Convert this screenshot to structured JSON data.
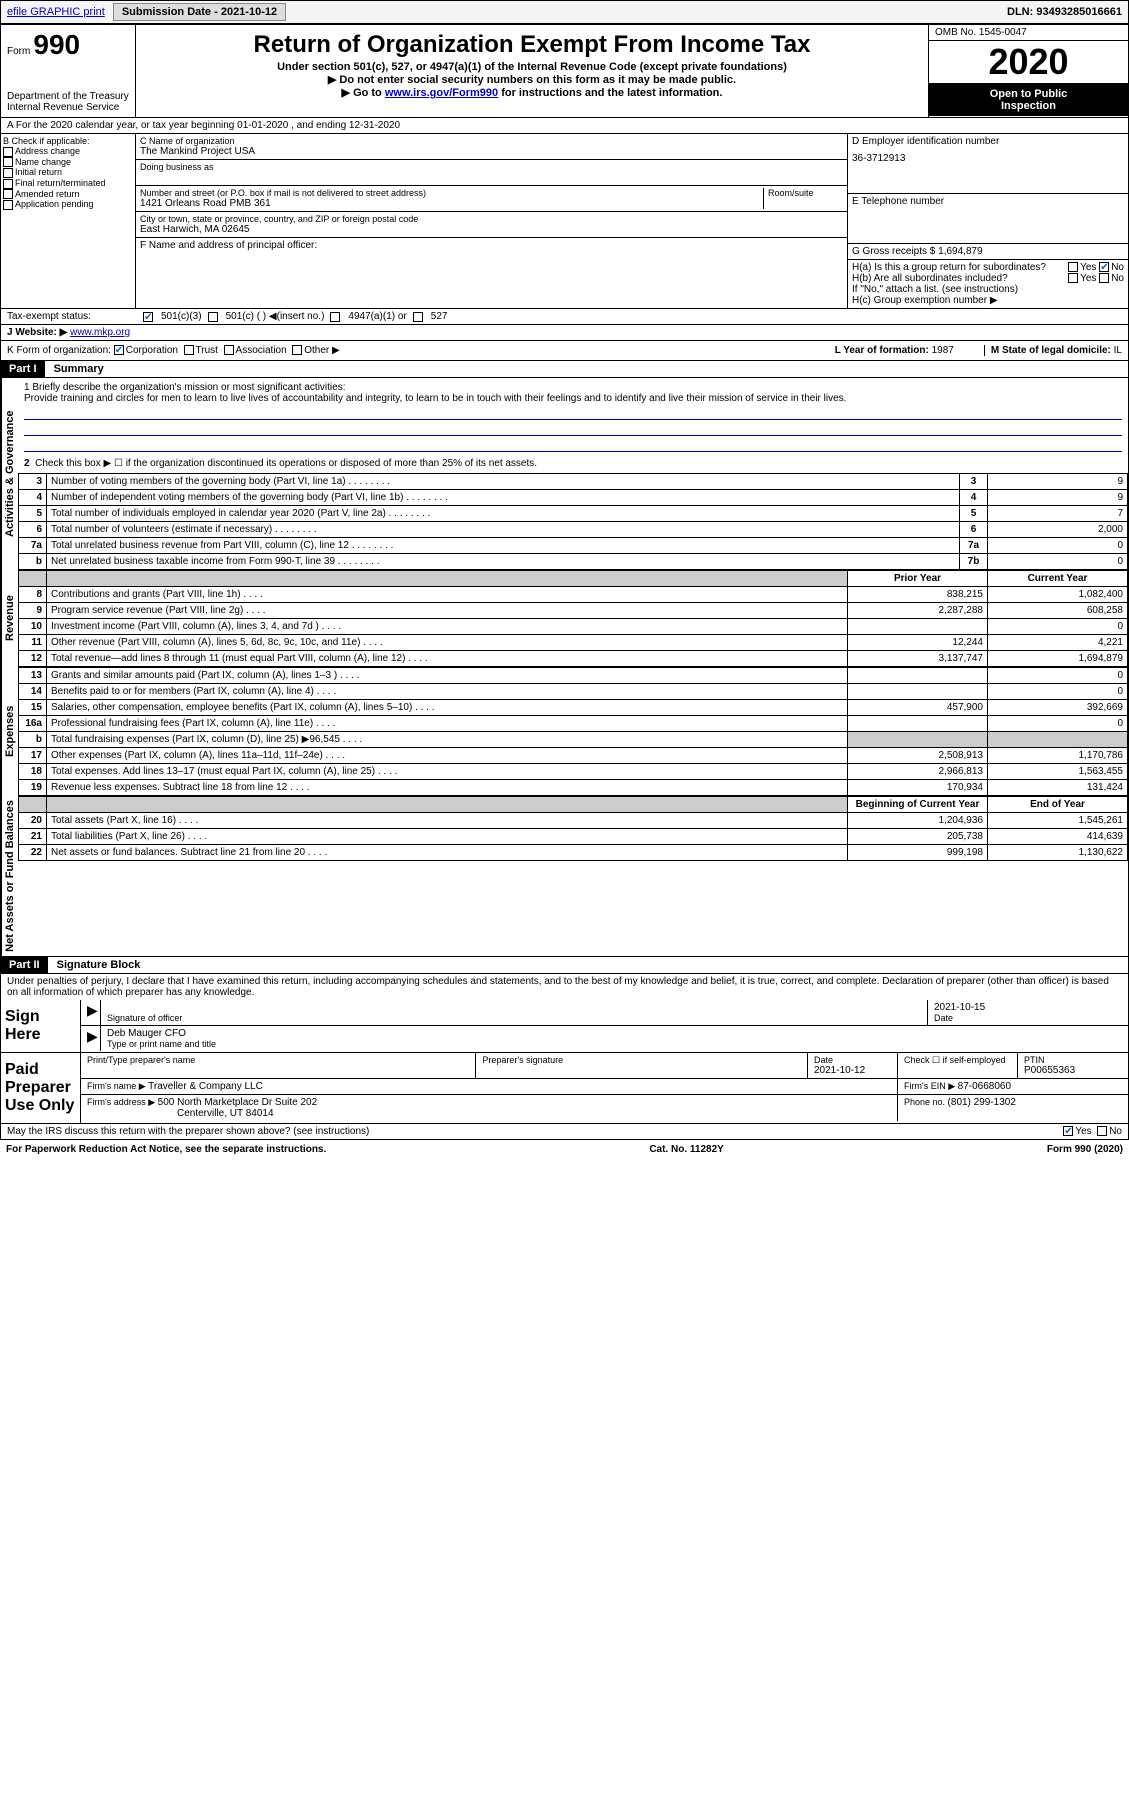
{
  "topbar": {
    "efile": "efile GRAPHIC print",
    "submission_label": "Submission Date - 2021-10-12",
    "dln": "DLN: 93493285016661"
  },
  "header": {
    "form_small": "Form",
    "form_big": "990",
    "dept1": "Department of the Treasury",
    "dept2": "Internal Revenue Service",
    "title": "Return of Organization Exempt From Income Tax",
    "sub1": "Under section 501(c), 527, or 4947(a)(1) of the Internal Revenue Code (except private foundations)",
    "sub2": "▶ Do not enter social security numbers on this form as it may be made public.",
    "sub3_pre": "▶ Go to ",
    "sub3_link": "www.irs.gov/Form990",
    "sub3_post": " for instructions and the latest information.",
    "omb": "OMB No. 1545-0047",
    "year": "2020",
    "open1": "Open to Public",
    "open2": "Inspection"
  },
  "sectionA": "A For the 2020 calendar year, or tax year beginning 01-01-2020   , and ending 12-31-2020",
  "blockB": {
    "title": "B Check if applicable:",
    "opts": [
      "Address change",
      "Name change",
      "Initial return",
      "Final return/terminated",
      "Amended return",
      "Application pending"
    ]
  },
  "blockC": {
    "name_label": "C Name of organization",
    "name": "The Mankind Project USA",
    "dba_label": "Doing business as",
    "addr_label": "Number and street (or P.O. box if mail is not delivered to street address)",
    "room_label": "Room/suite",
    "addr": "1421 Orleans Road PMB 361",
    "city_label": "City or town, state or province, country, and ZIP or foreign postal code",
    "city": "East Harwich, MA  02645",
    "officer_label": "F  Name and address of principal officer:"
  },
  "blockD": {
    "ein_label": "D Employer identification number",
    "ein": "36-3712913",
    "phone_label": "E Telephone number",
    "gross_label": "G Gross receipts $ ",
    "gross": "1,694,879"
  },
  "blockH": {
    "a": "H(a)  Is this a group return for subordinates?",
    "b": "H(b)  Are all subordinates included?",
    "b_note": "If \"No,\" attach a list. (see instructions)",
    "c": "H(c)  Group exemption number ▶",
    "yes": "Yes",
    "no": "No"
  },
  "taxRow": {
    "label": "Tax-exempt status:",
    "o1": "501(c)(3)",
    "o2": "501(c) (  ) ◀(insert no.)",
    "o3": "4947(a)(1) or",
    "o4": "527"
  },
  "website": {
    "label": "J   Website: ▶",
    "url": "www.mkp.org"
  },
  "formOrg": {
    "k": "K Form of organization:",
    "corp": "Corporation",
    "trust": "Trust",
    "assoc": "Association",
    "other": "Other ▶",
    "l": "L Year of formation: ",
    "lval": "1987",
    "m": "M State of legal domicile: ",
    "mval": "IL"
  },
  "part1": {
    "header": "Part I",
    "title": "Summary"
  },
  "summary": {
    "line1_label": "1  Briefly describe the organization's mission or most significant activities:",
    "mission": "Provide training and circles for men to learn to live lives of accountability and integrity, to learn to be in touch with their feelings and to identify and live their mission of service in their lives.",
    "line2": "Check this box ▶ ☐  if the organization discontinued its operations or disposed of more than 25% of its net assets.",
    "rows_ag": [
      {
        "n": "3",
        "d": "Number of voting members of the governing body (Part VI, line 1a)",
        "box": "3",
        "v": "9"
      },
      {
        "n": "4",
        "d": "Number of independent voting members of the governing body (Part VI, line 1b)",
        "box": "4",
        "v": "9"
      },
      {
        "n": "5",
        "d": "Total number of individuals employed in calendar year 2020 (Part V, line 2a)",
        "box": "5",
        "v": "7"
      },
      {
        "n": "6",
        "d": "Total number of volunteers (estimate if necessary)",
        "box": "6",
        "v": "2,000"
      },
      {
        "n": "7a",
        "d": "Total unrelated business revenue from Part VIII, column (C), line 12",
        "box": "7a",
        "v": "0"
      },
      {
        "n": "b",
        "d": "Net unrelated business taxable income from Form 990-T, line 39",
        "box": "7b",
        "v": "0"
      }
    ],
    "col_prior": "Prior Year",
    "col_current": "Current Year",
    "rows_rev": [
      {
        "n": "8",
        "d": "Contributions and grants (Part VIII, line 1h)",
        "p": "838,215",
        "c": "1,082,400"
      },
      {
        "n": "9",
        "d": "Program service revenue (Part VIII, line 2g)",
        "p": "2,287,288",
        "c": "608,258"
      },
      {
        "n": "10",
        "d": "Investment income (Part VIII, column (A), lines 3, 4, and 7d )",
        "p": "",
        "c": "0"
      },
      {
        "n": "11",
        "d": "Other revenue (Part VIII, column (A), lines 5, 6d, 8c, 9c, 10c, and 11e)",
        "p": "12,244",
        "c": "4,221"
      },
      {
        "n": "12",
        "d": "Total revenue—add lines 8 through 11 (must equal Part VIII, column (A), line 12)",
        "p": "3,137,747",
        "c": "1,694,879"
      }
    ],
    "rows_exp": [
      {
        "n": "13",
        "d": "Grants and similar amounts paid (Part IX, column (A), lines 1–3 )",
        "p": "",
        "c": "0"
      },
      {
        "n": "14",
        "d": "Benefits paid to or for members (Part IX, column (A), line 4)",
        "p": "",
        "c": "0"
      },
      {
        "n": "15",
        "d": "Salaries, other compensation, employee benefits (Part IX, column (A), lines 5–10)",
        "p": "457,900",
        "c": "392,669"
      },
      {
        "n": "16a",
        "d": "Professional fundraising fees (Part IX, column (A), line 11e)",
        "p": "",
        "c": "0"
      },
      {
        "n": "b",
        "d": "Total fundraising expenses (Part IX, column (D), line 25) ▶96,545",
        "p": "shade",
        "c": "shade"
      },
      {
        "n": "17",
        "d": "Other expenses (Part IX, column (A), lines 11a–11d, 11f–24e)",
        "p": "2,508,913",
        "c": "1,170,786"
      },
      {
        "n": "18",
        "d": "Total expenses. Add lines 13–17 (must equal Part IX, column (A), line 25)",
        "p": "2,966,813",
        "c": "1,563,455"
      },
      {
        "n": "19",
        "d": "Revenue less expenses. Subtract line 18 from line 12",
        "p": "170,934",
        "c": "131,424"
      }
    ],
    "col_begin": "Beginning of Current Year",
    "col_end": "End of Year",
    "rows_net": [
      {
        "n": "20",
        "d": "Total assets (Part X, line 16)",
        "p": "1,204,936",
        "c": "1,545,261"
      },
      {
        "n": "21",
        "d": "Total liabilities (Part X, line 26)",
        "p": "205,738",
        "c": "414,639"
      },
      {
        "n": "22",
        "d": "Net assets or fund balances. Subtract line 21 from line 20",
        "p": "999,198",
        "c": "1,130,622"
      }
    ]
  },
  "labels": {
    "ag": "Activities & Governance",
    "rev": "Revenue",
    "exp": "Expenses",
    "net": "Net Assets or Fund Balances"
  },
  "part2": {
    "header": "Part II",
    "title": "Signature Block"
  },
  "sig": {
    "penalty": "Under penalties of perjury, I declare that I have examined this return, including accompanying schedules and statements, and to the best of my knowledge and belief, it is true, correct, and complete. Declaration of preparer (other than officer) is based on all information of which preparer has any knowledge.",
    "sign_here": "Sign Here",
    "sig_officer": "Signature of officer",
    "date": "Date",
    "date_val": "2021-10-15",
    "name_title": "Deb Mauger CFO",
    "name_title_label": "Type or print name and title",
    "paid": "Paid Preparer Use Only",
    "prep_name": "Print/Type preparer's name",
    "prep_sig": "Preparer's signature",
    "prep_date": "Date",
    "prep_date_val": "2021-10-12",
    "check_self": "Check ☐ if self-employed",
    "ptin_label": "PTIN",
    "ptin": "P00655363",
    "firm_name_label": "Firm's name    ▶ ",
    "firm_name": "Traveller & Company LLC",
    "firm_ein_label": "Firm's EIN ▶ ",
    "firm_ein": "87-0668060",
    "firm_addr_label": "Firm's address ▶ ",
    "firm_addr1": "500 North Marketplace Dr Suite 202",
    "firm_addr2": "Centerville, UT  84014",
    "phone_label": "Phone no. ",
    "phone": "(801) 299-1302",
    "discuss": "May the IRS discuss this return with the preparer shown above? (see instructions)",
    "yes": "Yes",
    "no": "No"
  },
  "footer": {
    "left": "For Paperwork Reduction Act Notice, see the separate instructions.",
    "mid": "Cat. No. 11282Y",
    "right": "Form 990 (2020)"
  }
}
